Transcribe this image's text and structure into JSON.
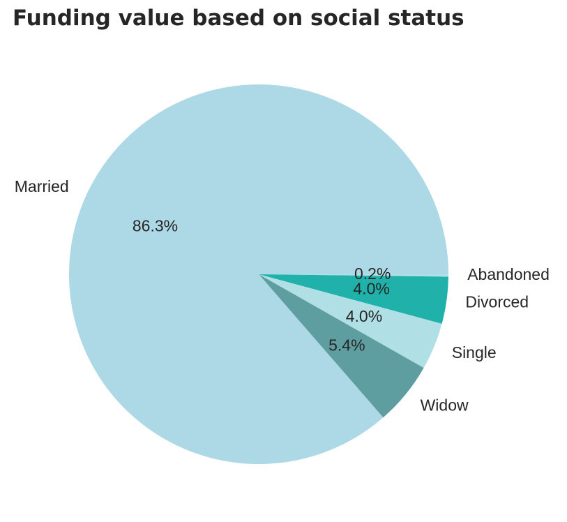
{
  "chart_data": {
    "type": "pie",
    "title": "Funding value based on social status",
    "categories": [
      "Abandoned",
      "Divorced",
      "Single",
      "Widow",
      "Married"
    ],
    "values": [
      0.2,
      4.0,
      4.0,
      5.4,
      86.3
    ],
    "percent_labels": [
      "0.2%",
      "4.0%",
      "4.0%",
      "5.4%",
      "86.3%"
    ],
    "colors": [
      "#b0e0e6",
      "#20b2aa",
      "#b0e0e6",
      "#5f9ea0",
      "#add8e6"
    ],
    "start_angle_deg": 0,
    "direction": "clockwise-on-screen",
    "legend": "none"
  }
}
